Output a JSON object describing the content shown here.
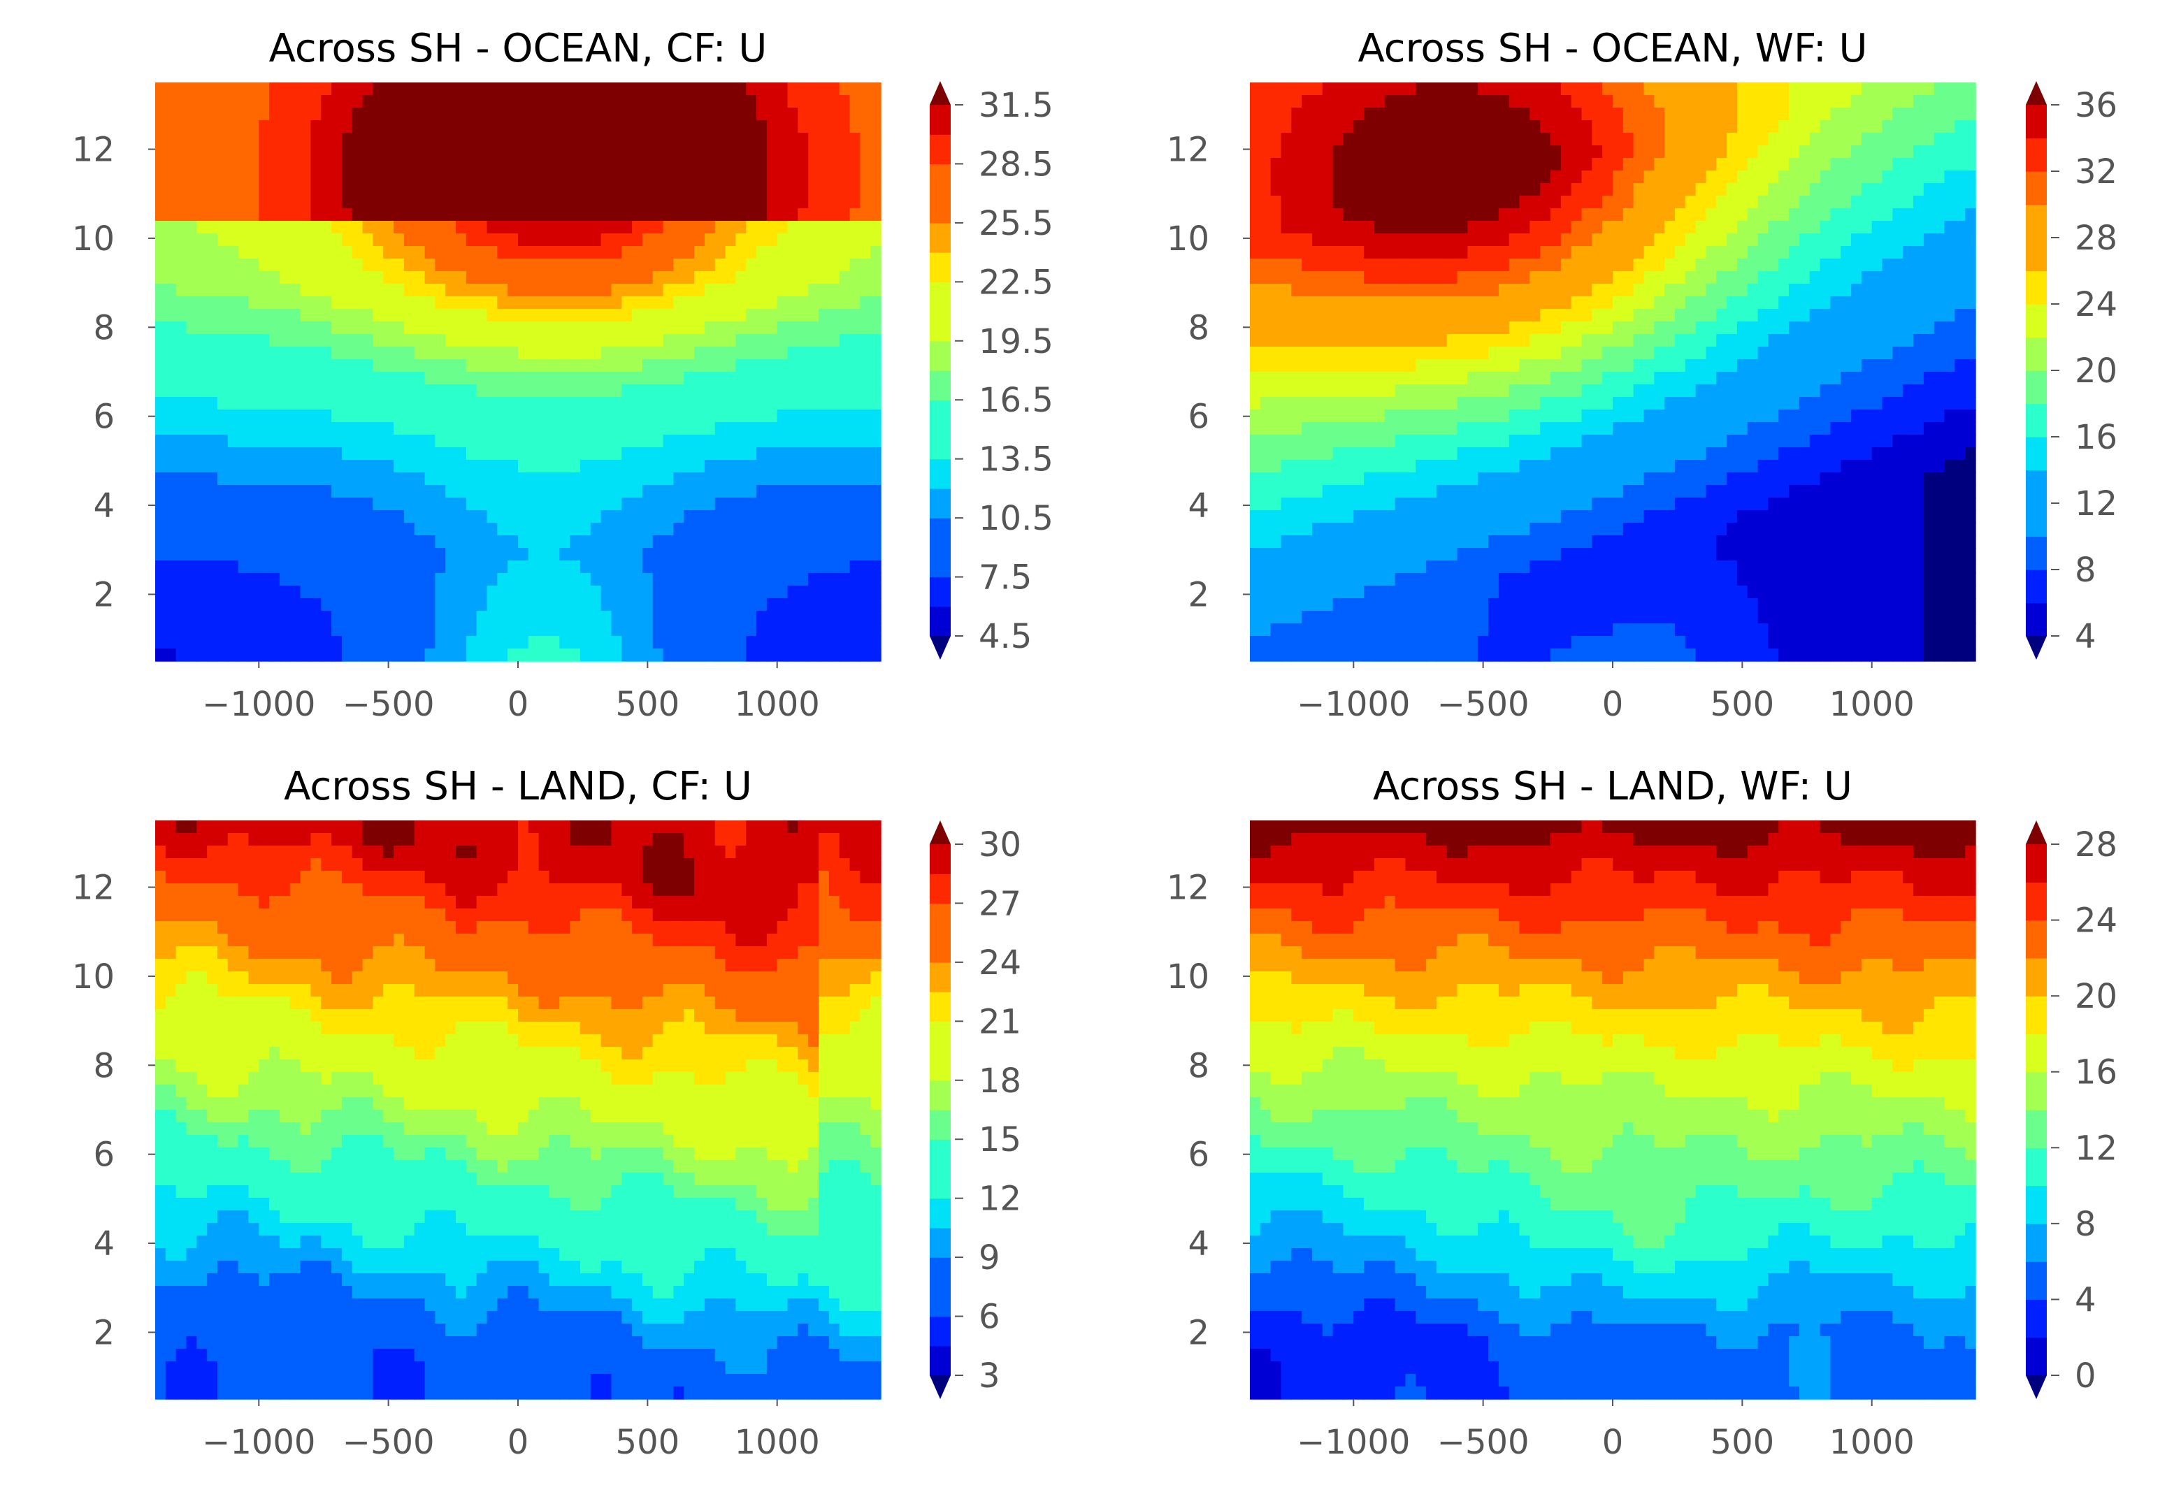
{
  "figure": {
    "colormap": [
      "#00007f",
      "#0000d4",
      "#0020ff",
      "#0060ff",
      "#00a4ff",
      "#00e0f6",
      "#2bffcc",
      "#6aff8d",
      "#a4ff53",
      "#d8ff1e",
      "#ffe500",
      "#ffa700",
      "#ff6800",
      "#ff2900",
      "#d40000",
      "#7f0000"
    ]
  },
  "chart_data": [
    {
      "id": "ocean-cf",
      "type": "heatmap",
      "title": "Across SH - OCEAN, CF: U",
      "x_range": [
        -1400,
        1400
      ],
      "y_range": [
        0.5,
        13.5
      ],
      "x_ticks": [
        -1000,
        -500,
        0,
        500,
        1000
      ],
      "x_tick_labels": [
        "−1000",
        "−500",
        "0",
        "500",
        "1000"
      ],
      "y_ticks": [
        2,
        4,
        6,
        8,
        10,
        12
      ],
      "y_tick_labels": [
        "2",
        "4",
        "6",
        "8",
        "10",
        "12"
      ],
      "levels": [
        4.5,
        6,
        7.5,
        9,
        10.5,
        12,
        13.5,
        15,
        16.5,
        18,
        19.5,
        21,
        22.5,
        24,
        25.5,
        27,
        28.5,
        30,
        31.5
      ],
      "colorbar_ticks": [
        4.5,
        7.5,
        10.5,
        13.5,
        16.5,
        19.5,
        22.5,
        25.5,
        28.5,
        31.5
      ],
      "colorbar_tick_labels": [
        "4.5",
        "7.5",
        "10.5",
        "13.5",
        "16.5",
        "19.5",
        "22.5",
        "25.5",
        "28.5",
        "31.5"
      ],
      "colorbar_extend": "both",
      "field": {
        "min": 4.5,
        "max": 32,
        "edge_surface_low": 5.5,
        "edge_surface_high": 13,
        "edge_height_km": 10.3,
        "center_surface": 14.5,
        "center_x": 100,
        "center_width": 600,
        "max_x": 150,
        "max_y": 11.5,
        "max_value": 32,
        "max_width_x": 550,
        "max_width_y": 2.6
      }
    },
    {
      "id": "ocean-wf",
      "type": "heatmap",
      "title": "Across SH - OCEAN, WF: U",
      "x_range": [
        -1400,
        1400
      ],
      "y_range": [
        0.5,
        13.5
      ],
      "x_ticks": [
        -1000,
        -500,
        0,
        500,
        1000
      ],
      "x_tick_labels": [
        "−1000",
        "−500",
        "0",
        "500",
        "1000"
      ],
      "y_ticks": [
        2,
        4,
        6,
        8,
        10,
        12
      ],
      "y_tick_labels": [
        "2",
        "4",
        "6",
        "8",
        "10",
        "12"
      ],
      "levels": [
        4,
        6,
        8,
        10,
        12,
        14,
        16,
        18,
        20,
        22,
        24,
        26,
        28,
        30,
        32,
        34,
        36
      ],
      "colorbar_ticks": [
        4,
        8,
        12,
        16,
        20,
        24,
        28,
        32,
        36
      ],
      "colorbar_tick_labels": [
        "4",
        "8",
        "12",
        "16",
        "20",
        "24",
        "28",
        "32",
        "36"
      ],
      "colorbar_extend": "both",
      "field": {
        "min": 3,
        "max": 37,
        "left_surface": 10,
        "right_surface": 3.5,
        "top_left": 28,
        "top_right": 20,
        "max_x": -520,
        "max_y": 11.3,
        "max_value": 37,
        "max_width_x": 650,
        "max_width_y": 3.2
      }
    },
    {
      "id": "land-cf",
      "type": "heatmap",
      "title": "Across SH - LAND, CF: U",
      "x_range": [
        -1400,
        1400
      ],
      "y_range": [
        0.5,
        13.5
      ],
      "x_ticks": [
        -1000,
        -500,
        0,
        500,
        1000
      ],
      "x_tick_labels": [
        "−1000",
        "−500",
        "0",
        "500",
        "1000"
      ],
      "y_ticks": [
        2,
        4,
        6,
        8,
        10,
        12
      ],
      "y_tick_labels": [
        "2",
        "4",
        "6",
        "8",
        "10",
        "12"
      ],
      "levels": [
        3,
        4.5,
        6,
        7.5,
        9,
        10.5,
        12,
        13.5,
        15,
        16.5,
        18,
        19.5,
        21,
        22.5,
        24,
        25.5,
        27,
        28.5,
        30
      ],
      "colorbar_ticks": [
        3,
        6,
        9,
        12,
        15,
        18,
        21,
        24,
        27,
        30
      ],
      "colorbar_tick_labels": [
        "3",
        "6",
        "9",
        "12",
        "15",
        "18",
        "21",
        "24",
        "27",
        "30"
      ],
      "colorbar_extend": "both",
      "field": {
        "min": 2,
        "max": 31.5,
        "surface": 6.5,
        "top": 29.5,
        "right_edge_drop": 4,
        "ripple": 1.2
      }
    },
    {
      "id": "land-wf",
      "type": "heatmap",
      "title": "Across SH - LAND, WF: U",
      "x_range": [
        -1400,
        1400
      ],
      "y_range": [
        0.5,
        13.5
      ],
      "x_ticks": [
        -1000,
        -500,
        0,
        500,
        1000
      ],
      "x_tick_labels": [
        "−1000",
        "−500",
        "0",
        "500",
        "1000"
      ],
      "y_ticks": [
        2,
        4,
        6,
        8,
        10,
        12
      ],
      "y_tick_labels": [
        "2",
        "4",
        "6",
        "8",
        "10",
        "12"
      ],
      "levels": [
        0,
        2,
        4,
        6,
        8,
        10,
        12,
        14,
        16,
        18,
        20,
        22,
        24,
        26,
        28
      ],
      "colorbar_ticks": [
        0,
        4,
        8,
        12,
        16,
        20,
        24,
        28
      ],
      "colorbar_tick_labels": [
        "0",
        "4",
        "8",
        "12",
        "16",
        "20",
        "24",
        "28"
      ],
      "colorbar_extend": "both",
      "field": {
        "min": -1,
        "max": 30,
        "left_surface": 2.5,
        "right_surface": 6,
        "top": 29,
        "ripple": 1.0
      }
    }
  ]
}
